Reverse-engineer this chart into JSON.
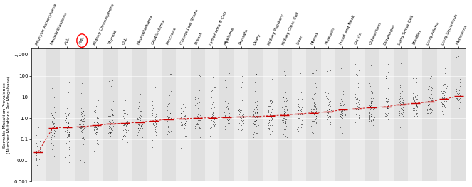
{
  "cancer_types": [
    "Pilocytic Astrocytoma",
    "Medulloblastoma",
    "ALL",
    "AML",
    "Kidney Chromophobe",
    "Thyroid",
    "CLL",
    "Neuroblastoma",
    "Glioblastoma",
    "Pancreas",
    "Glioma Low Grade",
    "Breast",
    "Lymphoma B Cell",
    "Myeloma",
    "Prostate",
    "Ovary",
    "Kidney Papillary",
    "Kidney Clear Cell",
    "Liver",
    "Uterus",
    "Stomach",
    "Head and Neck",
    "Cervix",
    "Colorectum",
    "Esophagus",
    "Lung Small Cell",
    "Bladder",
    "Lung Adeno",
    "Lung Squamous",
    "Melanoma"
  ],
  "medians": [
    0.025,
    0.35,
    0.37,
    0.4,
    0.45,
    0.55,
    0.57,
    0.65,
    0.75,
    0.9,
    0.95,
    1.0,
    1.05,
    1.1,
    1.15,
    1.2,
    1.3,
    1.4,
    1.6,
    1.8,
    2.0,
    2.5,
    2.8,
    3.2,
    3.5,
    4.5,
    5.0,
    6.0,
    8.0,
    11.0
  ],
  "aml_index": 3,
  "background_color": "#f2f2f2",
  "stripe_color_light": "#ebebeb",
  "stripe_color_dark": "#e0e0e0",
  "ylabel": "Somatic Mutation Prevalence\n(Number Mutations Per Megabase)",
  "median_color": "#cc0000",
  "dot_color": "#111111",
  "ytick_labels": [
    "0.001",
    "0.01",
    "0.1",
    "1.0",
    "10",
    "100",
    "1,000"
  ],
  "ytick_vals": [
    0.001,
    0.01,
    0.1,
    1.0,
    10,
    100,
    1000
  ]
}
